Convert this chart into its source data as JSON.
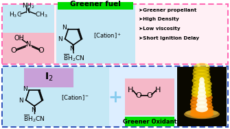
{
  "bg_color": "#ffffff",
  "top_box_bg": "#fff0f5",
  "top_box_border": "#ff69b4",
  "bottom_box_bg": "#ddeeff",
  "bottom_box_border": "#3355bb",
  "fuel_label_bg": "#00dd00",
  "fuel_label_text": "Greener fuel",
  "oxidant_label_bg": "#00dd00",
  "oxidant_label_text": "Greener Oxidant",
  "blue_bg": "#c5e8f5",
  "pink_bg": "#f5b8c8",
  "purple_bg": "#c8a0d8",
  "bullet_points": [
    ">Greener propellant",
    ">High Density",
    ">Low viscosity",
    ">Short Ignition Delay"
  ]
}
